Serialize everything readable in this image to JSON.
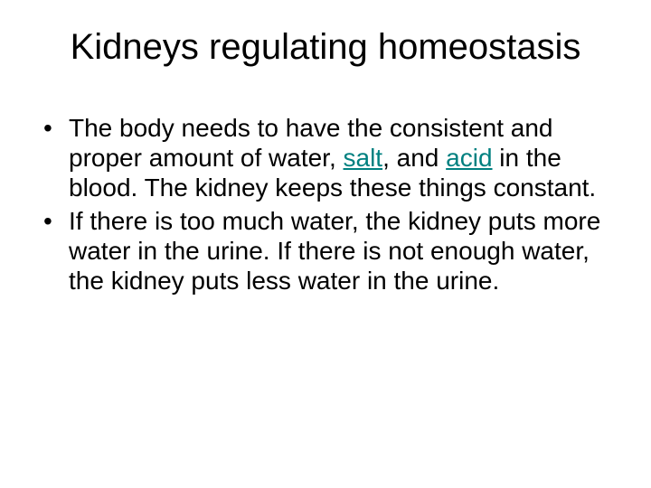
{
  "title": "Kidneys regulating homeostasis",
  "bullets": [
    {
      "pre": "The body needs to have the consistent and proper amount of water, ",
      "link1": "salt",
      "mid": ", and ",
      "link2": "acid",
      "post": " in the blood. The kidney keeps these things constant."
    },
    {
      "text": "If there is too much water, the kidney puts more water in the urine. If there is not enough water, the kidney puts less water in the urine."
    }
  ],
  "colors": {
    "link": "#008080",
    "text": "#000000",
    "background": "#ffffff"
  },
  "typography": {
    "title_fontsize": 40,
    "body_fontsize": 28,
    "font_family": "Arial"
  }
}
